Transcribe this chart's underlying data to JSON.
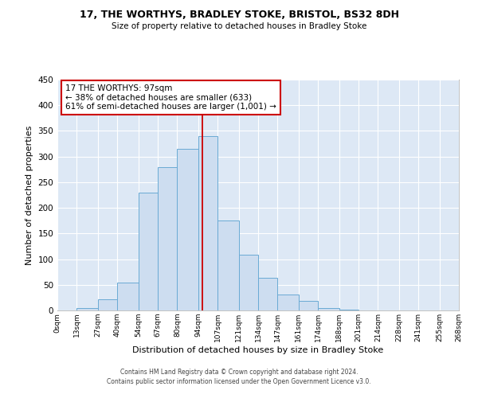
{
  "title": "17, THE WORTHYS, BRADLEY STOKE, BRISTOL, BS32 8DH",
  "subtitle": "Size of property relative to detached houses in Bradley Stoke",
  "xlabel": "Distribution of detached houses by size in Bradley Stoke",
  "ylabel": "Number of detached properties",
  "bar_edges": [
    0,
    13,
    27,
    40,
    54,
    67,
    80,
    94,
    107,
    121,
    134,
    147,
    161,
    174,
    188,
    201,
    214,
    228,
    241,
    255,
    268
  ],
  "bar_heights": [
    0,
    5,
    22,
    54,
    230,
    280,
    315,
    340,
    175,
    108,
    63,
    31,
    19,
    5,
    2,
    0,
    0,
    0,
    0,
    0
  ],
  "tick_labels": [
    "0sqm",
    "13sqm",
    "27sqm",
    "40sqm",
    "54sqm",
    "67sqm",
    "80sqm",
    "94sqm",
    "107sqm",
    "121sqm",
    "134sqm",
    "147sqm",
    "161sqm",
    "174sqm",
    "188sqm",
    "201sqm",
    "214sqm",
    "228sqm",
    "241sqm",
    "255sqm",
    "268sqm"
  ],
  "bar_color": "#cdddf0",
  "bar_edge_color": "#6aaad4",
  "vline_x": 97,
  "vline_color": "#cc0000",
  "annotation_title": "17 THE WORTHYS: 97sqm",
  "annotation_line1": "← 38% of detached houses are smaller (633)",
  "annotation_line2": "61% of semi-detached houses are larger (1,001) →",
  "annotation_box_color": "#cc0000",
  "ylim": [
    0,
    450
  ],
  "yticks": [
    0,
    50,
    100,
    150,
    200,
    250,
    300,
    350,
    400,
    450
  ],
  "footer1": "Contains HM Land Registry data © Crown copyright and database right 2024.",
  "footer2": "Contains public sector information licensed under the Open Government Licence v3.0.",
  "bg_color": "#dde8f5",
  "fig_bg_color": "#ffffff",
  "grid_color": "#ffffff"
}
